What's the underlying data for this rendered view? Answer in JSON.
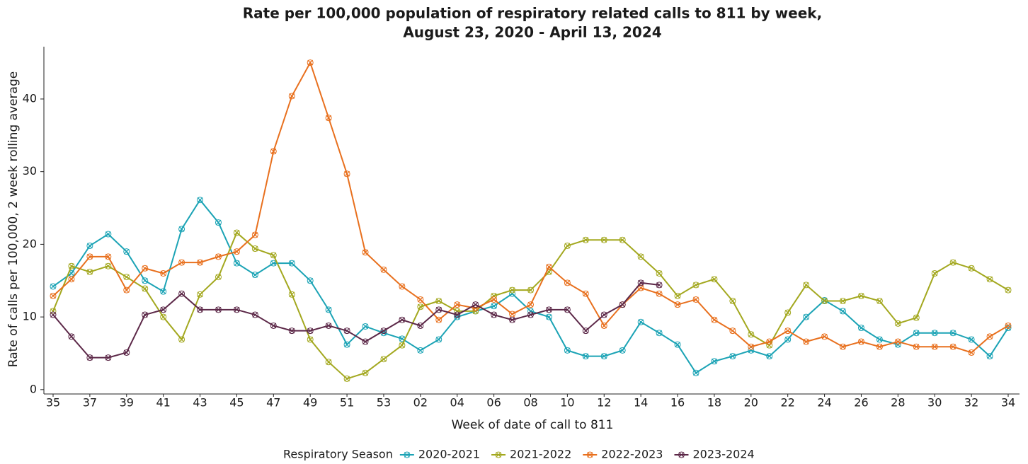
{
  "chart_data": {
    "type": "line",
    "title": [
      "Rate per 100,000 population of respiratory related calls to 811 by week,",
      "August 23, 2020 - April 13, 2024"
    ],
    "x_label": "Week of date of call to 811",
    "y_label": "Rate of calls per 100,000, 2 week rolling average",
    "legend_title": "Respiratory Season",
    "legend_position": "bottom",
    "categories": [
      "35",
      null,
      "37",
      null,
      "39",
      null,
      "41",
      null,
      "43",
      null,
      "45",
      null,
      "47",
      null,
      "49",
      null,
      "51",
      null,
      "53",
      null,
      "02",
      null,
      "04",
      null,
      "06",
      null,
      "08",
      null,
      "10",
      null,
      "12",
      null,
      "14",
      null,
      "16",
      null,
      "18",
      null,
      "20",
      null,
      "22",
      null,
      "24",
      null,
      "26",
      null,
      "28",
      null,
      "30",
      null,
      "32",
      null,
      "34"
    ],
    "ylim": [
      -0.6,
      47.2
    ],
    "yticks": [
      0,
      10,
      20,
      30,
      40
    ],
    "grid": false,
    "series": [
      {
        "name": "2020-2021",
        "color": "#1ba3b5",
        "values": [
          14.2,
          16,
          19.8,
          21.4,
          19,
          15,
          13.5,
          22.1,
          26.1,
          23,
          17.4,
          15.8,
          17.4,
          17.4,
          15,
          11,
          6.2,
          8.7,
          7.8,
          7,
          5.4,
          6.9,
          10,
          10.8,
          11.5,
          13.2,
          10.8,
          10,
          5.4,
          4.6,
          4.6,
          5.4,
          9.3,
          7.8,
          6.2,
          2.3,
          3.9,
          4.6,
          5.4,
          4.6,
          6.9,
          10,
          12.3,
          10.8,
          8.5,
          6.9,
          6.2,
          7.8,
          7.8,
          7.8,
          6.9,
          4.6,
          8.5
        ]
      },
      {
        "name": "2021-2022",
        "color": "#a3a81f",
        "values": [
          10.8,
          17,
          16.2,
          17,
          15.5,
          13.9,
          10,
          6.9,
          13.1,
          15.5,
          21.6,
          19.4,
          18.5,
          13.1,
          6.9,
          3.8,
          1.5,
          2.3,
          4.2,
          6.1,
          11.4,
          12.2,
          10.8,
          10.8,
          12.9,
          13.7,
          13.7,
          16.2,
          19.8,
          20.6,
          20.6,
          20.6,
          18.3,
          16,
          12.9,
          14.4,
          15.2,
          12.2,
          7.6,
          6.1,
          10.6,
          14.4,
          12.2,
          12.2,
          12.9,
          12.2,
          9.1,
          9.9,
          16,
          17.5,
          16.7,
          15.2,
          13.7
        ]
      },
      {
        "name": "2022-2023",
        "color": "#e8701e",
        "values": [
          12.9,
          15.2,
          18.3,
          18.3,
          13.7,
          16.7,
          16,
          17.5,
          17.5,
          18.3,
          19,
          21.3,
          32.8,
          40.4,
          45,
          37.4,
          29.7,
          18.9,
          16.5,
          14.2,
          12.4,
          9.6,
          11.7,
          11.2,
          12.4,
          10.4,
          11.7,
          16.9,
          14.7,
          13.2,
          8.8,
          11.7,
          14,
          13.2,
          11.7,
          12.4,
          9.6,
          8.1,
          5.9,
          6.6,
          8.1,
          6.6,
          7.3,
          5.9,
          6.6,
          5.9,
          6.6,
          5.9,
          5.9,
          5.9,
          5.1,
          7.3,
          8.8
        ]
      },
      {
        "name": "2023-2024",
        "color": "#5c2848",
        "values": [
          10.3,
          7.3,
          4.4,
          4.4,
          5.1,
          10.3,
          11,
          13.2,
          11,
          11,
          11,
          10.3,
          8.8,
          8.1,
          8.1,
          8.8,
          8.1,
          6.6,
          8.1,
          9.6,
          8.8,
          11,
          10.3,
          11.7,
          10.3,
          9.6,
          10.3,
          11,
          11,
          8.1,
          10.3,
          11.7,
          14.7,
          14.4,
          null,
          null,
          null,
          null,
          null,
          null,
          null,
          null,
          null,
          null,
          null,
          null,
          null,
          null,
          null,
          null,
          null,
          null,
          null
        ]
      }
    ]
  }
}
